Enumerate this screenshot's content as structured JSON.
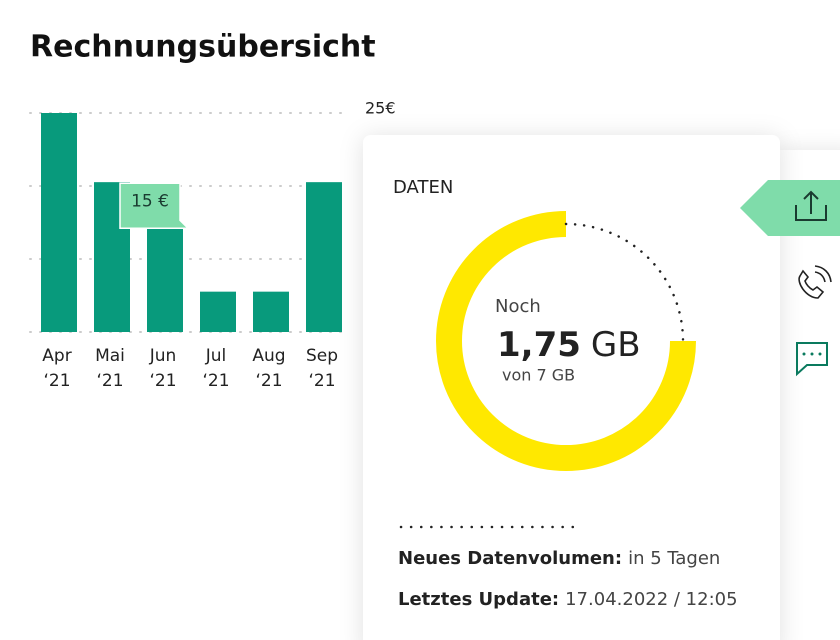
{
  "header": {
    "title": "Rechnungsübersicht"
  },
  "chart_data": {
    "type": "bar",
    "categories": [
      "Apr",
      "Mai",
      "Jun",
      "Jul",
      "Aug",
      "Sep"
    ],
    "category_years": [
      "‘21",
      "‘21",
      "‘21",
      "‘21",
      "‘21",
      "‘21"
    ],
    "values": [
      25,
      19,
      15,
      9.5,
      9.5,
      19
    ],
    "value_labels": [
      null,
      null,
      "15 €",
      null,
      null,
      null
    ],
    "color": "#089a7c",
    "ylim": [
      6,
      25
    ],
    "yticks": [
      {
        "value": 25,
        "label": "25€"
      }
    ],
    "grid": true
  },
  "card": {
    "title": "DATEN",
    "remaining_prefix": "Noch",
    "remaining": {
      "value": 1.75,
      "label": "1,75"
    },
    "unit": "GB",
    "total": 7,
    "total_label": "von 7 GB",
    "info": [
      {
        "label": "Neues Datenvolumen:",
        "value": "in 5 Tagen"
      },
      {
        "label": "Letztes Update:",
        "value": "17.04.2022 / 12:05"
      }
    ]
  }
}
